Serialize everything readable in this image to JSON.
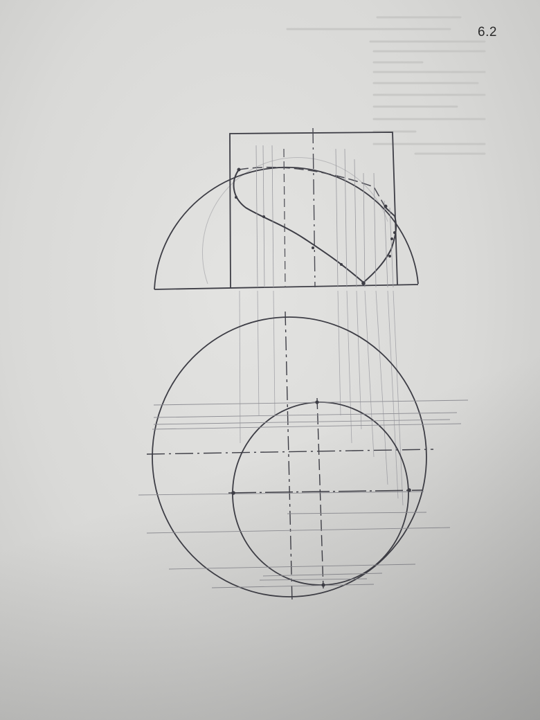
{
  "page": {
    "number": "6.2",
    "paper_color": "#dcdcda",
    "ink_color": "#3a3a40",
    "pencil_color": "#8a8a8e"
  },
  "drawing": {
    "type": "orthographic-projection",
    "subject": "sphere-cut-by-prism",
    "views": [
      "front-view",
      "top-view"
    ]
  }
}
